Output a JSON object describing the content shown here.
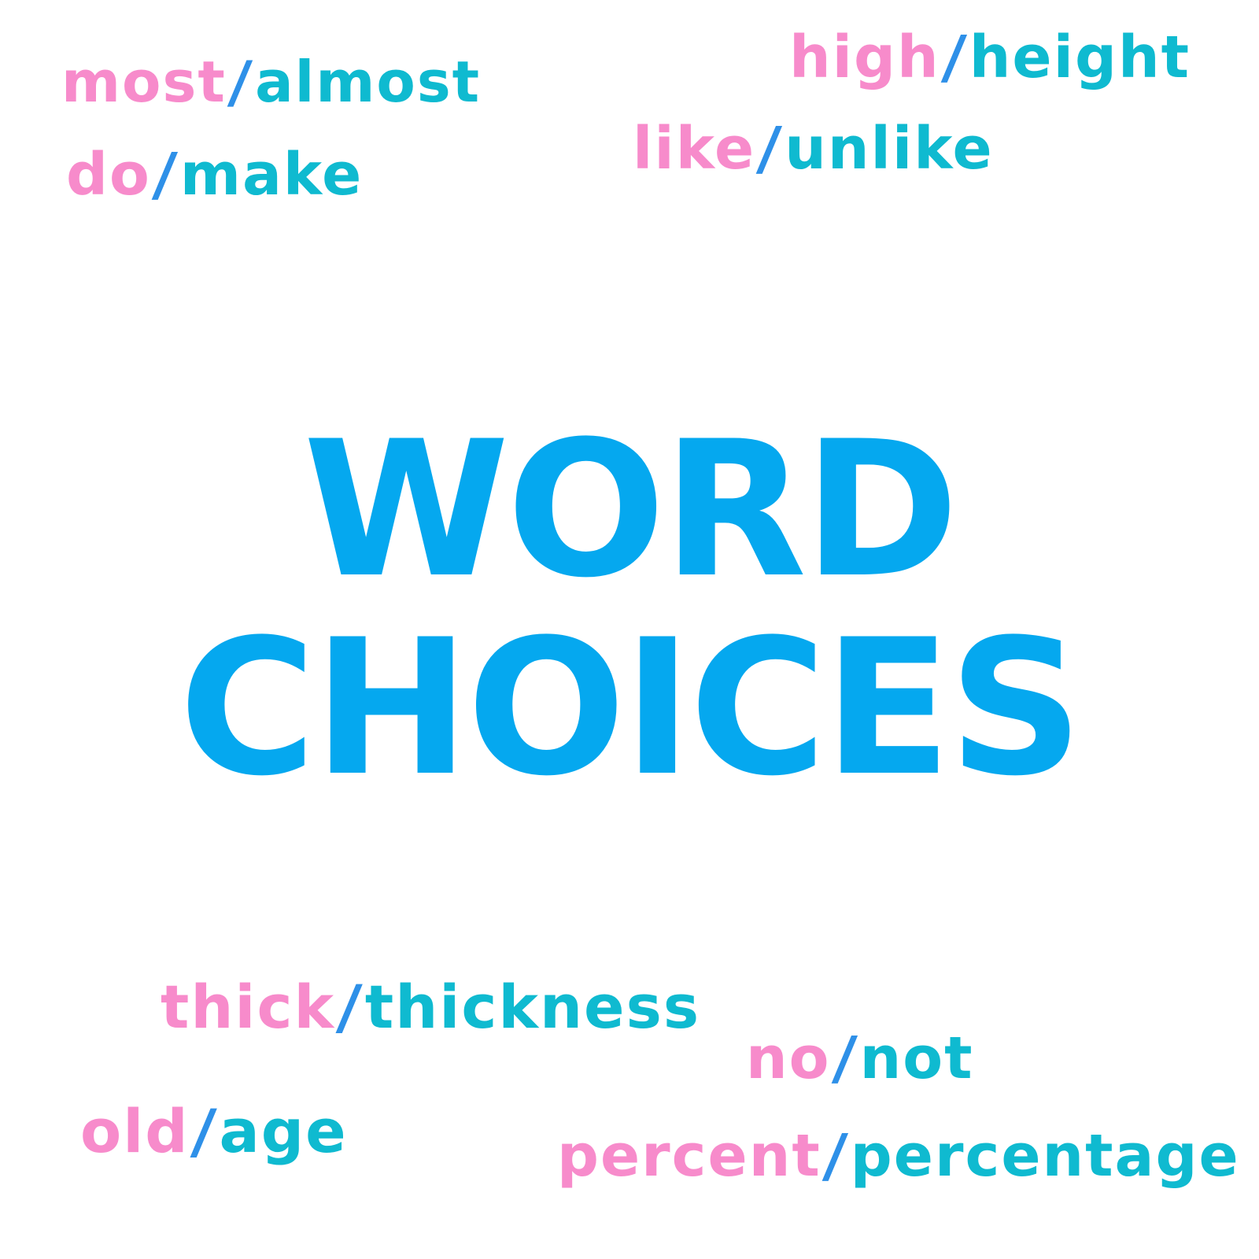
{
  "title": {
    "line1": "WORD",
    "line2": "CHOICES"
  },
  "pairs": [
    {
      "word1": "most",
      "separator": "/",
      "word2": "almost"
    },
    {
      "word1": "high",
      "separator": "/",
      "word2": "height"
    },
    {
      "word1": "do",
      "separator": "/",
      "word2": "make"
    },
    {
      "word1": "like",
      "separator": "/",
      "word2": "unlike"
    },
    {
      "word1": "thick",
      "separator": "/",
      "word2": "thickness"
    },
    {
      "word1": "no",
      "separator": "/",
      "word2": "not"
    },
    {
      "word1": "old",
      "separator": "/",
      "word2": "age"
    },
    {
      "word1": "percent",
      "separator": "/",
      "word2": "percentage"
    }
  ],
  "colors": {
    "background": "#ffffff",
    "title": "#05a8ef",
    "first_word": "#f78bcb",
    "second_word": "#0fbad0",
    "separator": "#2e90e8"
  }
}
